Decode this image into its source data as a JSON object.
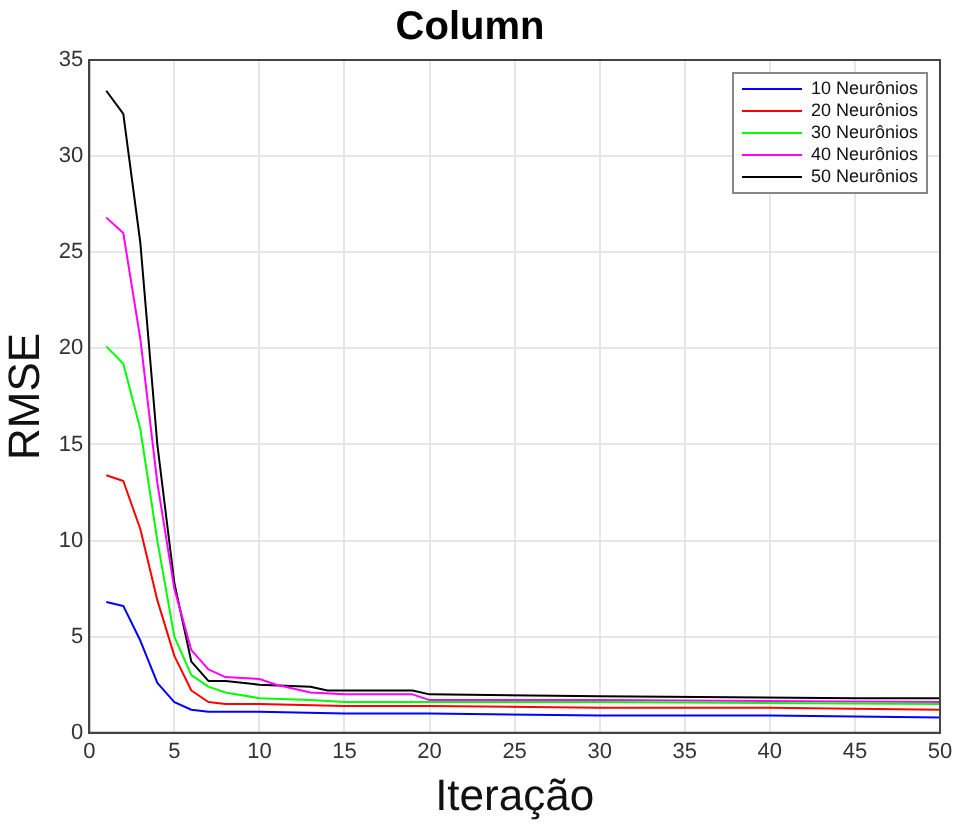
{
  "chart_data": {
    "type": "line",
    "title": "Column",
    "xlabel": "Iteração",
    "ylabel": "RMSE",
    "xlim": [
      0,
      50
    ],
    "xticks": [
      0,
      5,
      10,
      15,
      20,
      25,
      30,
      35,
      40,
      45,
      50
    ],
    "ylim": [
      0,
      35
    ],
    "yticks": [
      0,
      5,
      10,
      15,
      20,
      25,
      30,
      35
    ],
    "grid": true,
    "legend": "top right",
    "marker": "none",
    "line_style": "solid",
    "series": [
      {
        "name": "10 Neurônios",
        "color": "#0000ff",
        "x": [
          1,
          2,
          3,
          4,
          5,
          6,
          7,
          10,
          15,
          20,
          30,
          40,
          50
        ],
        "values": [
          6.8,
          6.6,
          4.8,
          2.6,
          1.6,
          1.2,
          1.1,
          1.1,
          1.0,
          1.0,
          0.9,
          0.9,
          0.8
        ]
      },
      {
        "name": "20 Neurônios",
        "color": "#ff0000",
        "x": [
          1,
          2,
          3,
          4,
          5,
          6,
          7,
          8,
          10,
          15,
          20,
          30,
          40,
          50
        ],
        "values": [
          13.4,
          13.1,
          10.6,
          6.9,
          4.0,
          2.2,
          1.6,
          1.5,
          1.5,
          1.4,
          1.4,
          1.3,
          1.3,
          1.2
        ]
      },
      {
        "name": "30 Neurônios",
        "color": "#00ff00",
        "x": [
          1,
          2,
          3,
          4,
          5,
          6,
          7,
          8,
          10,
          13,
          15,
          20,
          30,
          50
        ],
        "values": [
          20.1,
          19.2,
          15.8,
          10,
          5,
          3,
          2.4,
          2.1,
          1.8,
          1.7,
          1.6,
          1.6,
          1.6,
          1.5
        ]
      },
      {
        "name": "40 Neurônios",
        "color": "#ff00ff",
        "x": [
          1,
          2,
          3,
          4,
          5,
          6,
          7,
          8,
          10,
          11,
          13,
          15,
          19,
          20,
          30,
          50
        ],
        "values": [
          26.8,
          26,
          20.5,
          13,
          7.5,
          4.3,
          3.3,
          2.9,
          2.8,
          2.5,
          2.1,
          2.0,
          2.0,
          1.7,
          1.7,
          1.6
        ]
      },
      {
        "name": "50 Neurônios",
        "color": "#000000",
        "x": [
          1,
          2,
          3,
          4,
          5,
          6,
          7,
          8,
          10,
          13,
          14,
          19,
          20,
          30,
          45,
          50
        ],
        "values": [
          33.4,
          32.2,
          25.5,
          15,
          7.8,
          3.7,
          2.7,
          2.7,
          2.5,
          2.4,
          2.2,
          2.2,
          2.0,
          1.9,
          1.8,
          1.8
        ]
      }
    ]
  }
}
